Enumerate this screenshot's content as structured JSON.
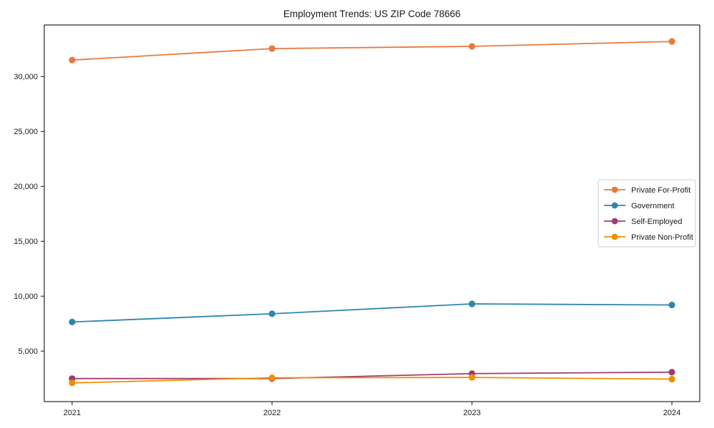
{
  "chart_data": {
    "type": "line",
    "title": "Employment Trends: US ZIP Code 78666",
    "xlabel": "",
    "ylabel": "",
    "grid": false,
    "legend_position": "center right",
    "x": [
      2021,
      2022,
      2023,
      2024
    ],
    "x_tick_labels": [
      "2021",
      "2022",
      "2023",
      "2024"
    ],
    "y_ticks": [
      5000,
      10000,
      15000,
      20000,
      25000,
      30000
    ],
    "y_tick_labels": [
      "5,000",
      "10,000",
      "15,000",
      "20,000",
      "25,000",
      "30,000"
    ],
    "ylim": [
      400,
      34700
    ],
    "series": [
      {
        "name": "Private For-Profit",
        "color": "#E8793D",
        "values": [
          31500,
          32550,
          32750,
          33200
        ]
      },
      {
        "name": "Government",
        "color": "#2E86AB",
        "values": [
          7650,
          8400,
          9300,
          9200
        ]
      },
      {
        "name": "Self-Employed",
        "color": "#A23B72",
        "values": [
          2500,
          2500,
          2950,
          3080
        ]
      },
      {
        "name": "Private Non-Profit",
        "color": "#F18F01",
        "values": [
          2100,
          2570,
          2600,
          2450
        ]
      }
    ]
  }
}
